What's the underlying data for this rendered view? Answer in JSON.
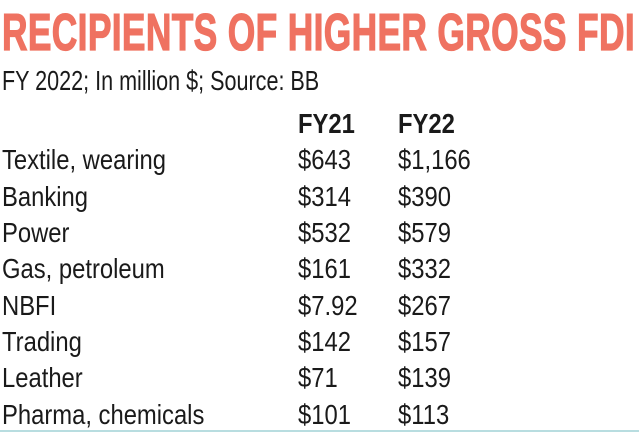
{
  "header": {
    "title": "RECIPIENTS OF HIGHER GROSS FDI",
    "subtitle": "FY 2022; In million $; Source: BB"
  },
  "table": {
    "columns": [
      "",
      "FY21",
      "FY22"
    ],
    "rows": [
      {
        "label": "Textile, wearing",
        "fy21": "$643",
        "fy22": "$1,166"
      },
      {
        "label": "Banking",
        "fy21": "$314",
        "fy22": "$390"
      },
      {
        "label": "Power",
        "fy21": "$532",
        "fy22": "$579"
      },
      {
        "label": "Gas, petroleum",
        "fy21": "$161",
        "fy22": "$332"
      },
      {
        "label": "NBFI",
        "fy21": "$7.92",
        "fy22": "$267"
      },
      {
        "label": "Trading",
        "fy21": "$142",
        "fy22": "$157"
      },
      {
        "label": "Leather",
        "fy21": "$71",
        "fy22": "$139"
      },
      {
        "label": "Pharma, chemicals",
        "fy21": "$101",
        "fy22": "$113"
      }
    ]
  },
  "colors": {
    "title": "#ef7261",
    "text": "#1a1a1a",
    "rule": "#b8dde0"
  },
  "chart_data": {
    "type": "table",
    "title": "RECIPIENTS OF HIGHER GROSS FDI",
    "subtitle": "FY 2022; In million $; Source: BB",
    "unit": "million $",
    "source": "BB",
    "categories": [
      "Textile, wearing",
      "Banking",
      "Power",
      "Gas, petroleum",
      "NBFI",
      "Trading",
      "Leather",
      "Pharma, chemicals"
    ],
    "series": [
      {
        "name": "FY21",
        "values": [
          643,
          314,
          532,
          161,
          7.92,
          142,
          71,
          101
        ]
      },
      {
        "name": "FY22",
        "values": [
          1166,
          390,
          579,
          332,
          267,
          157,
          139,
          113
        ]
      }
    ]
  }
}
